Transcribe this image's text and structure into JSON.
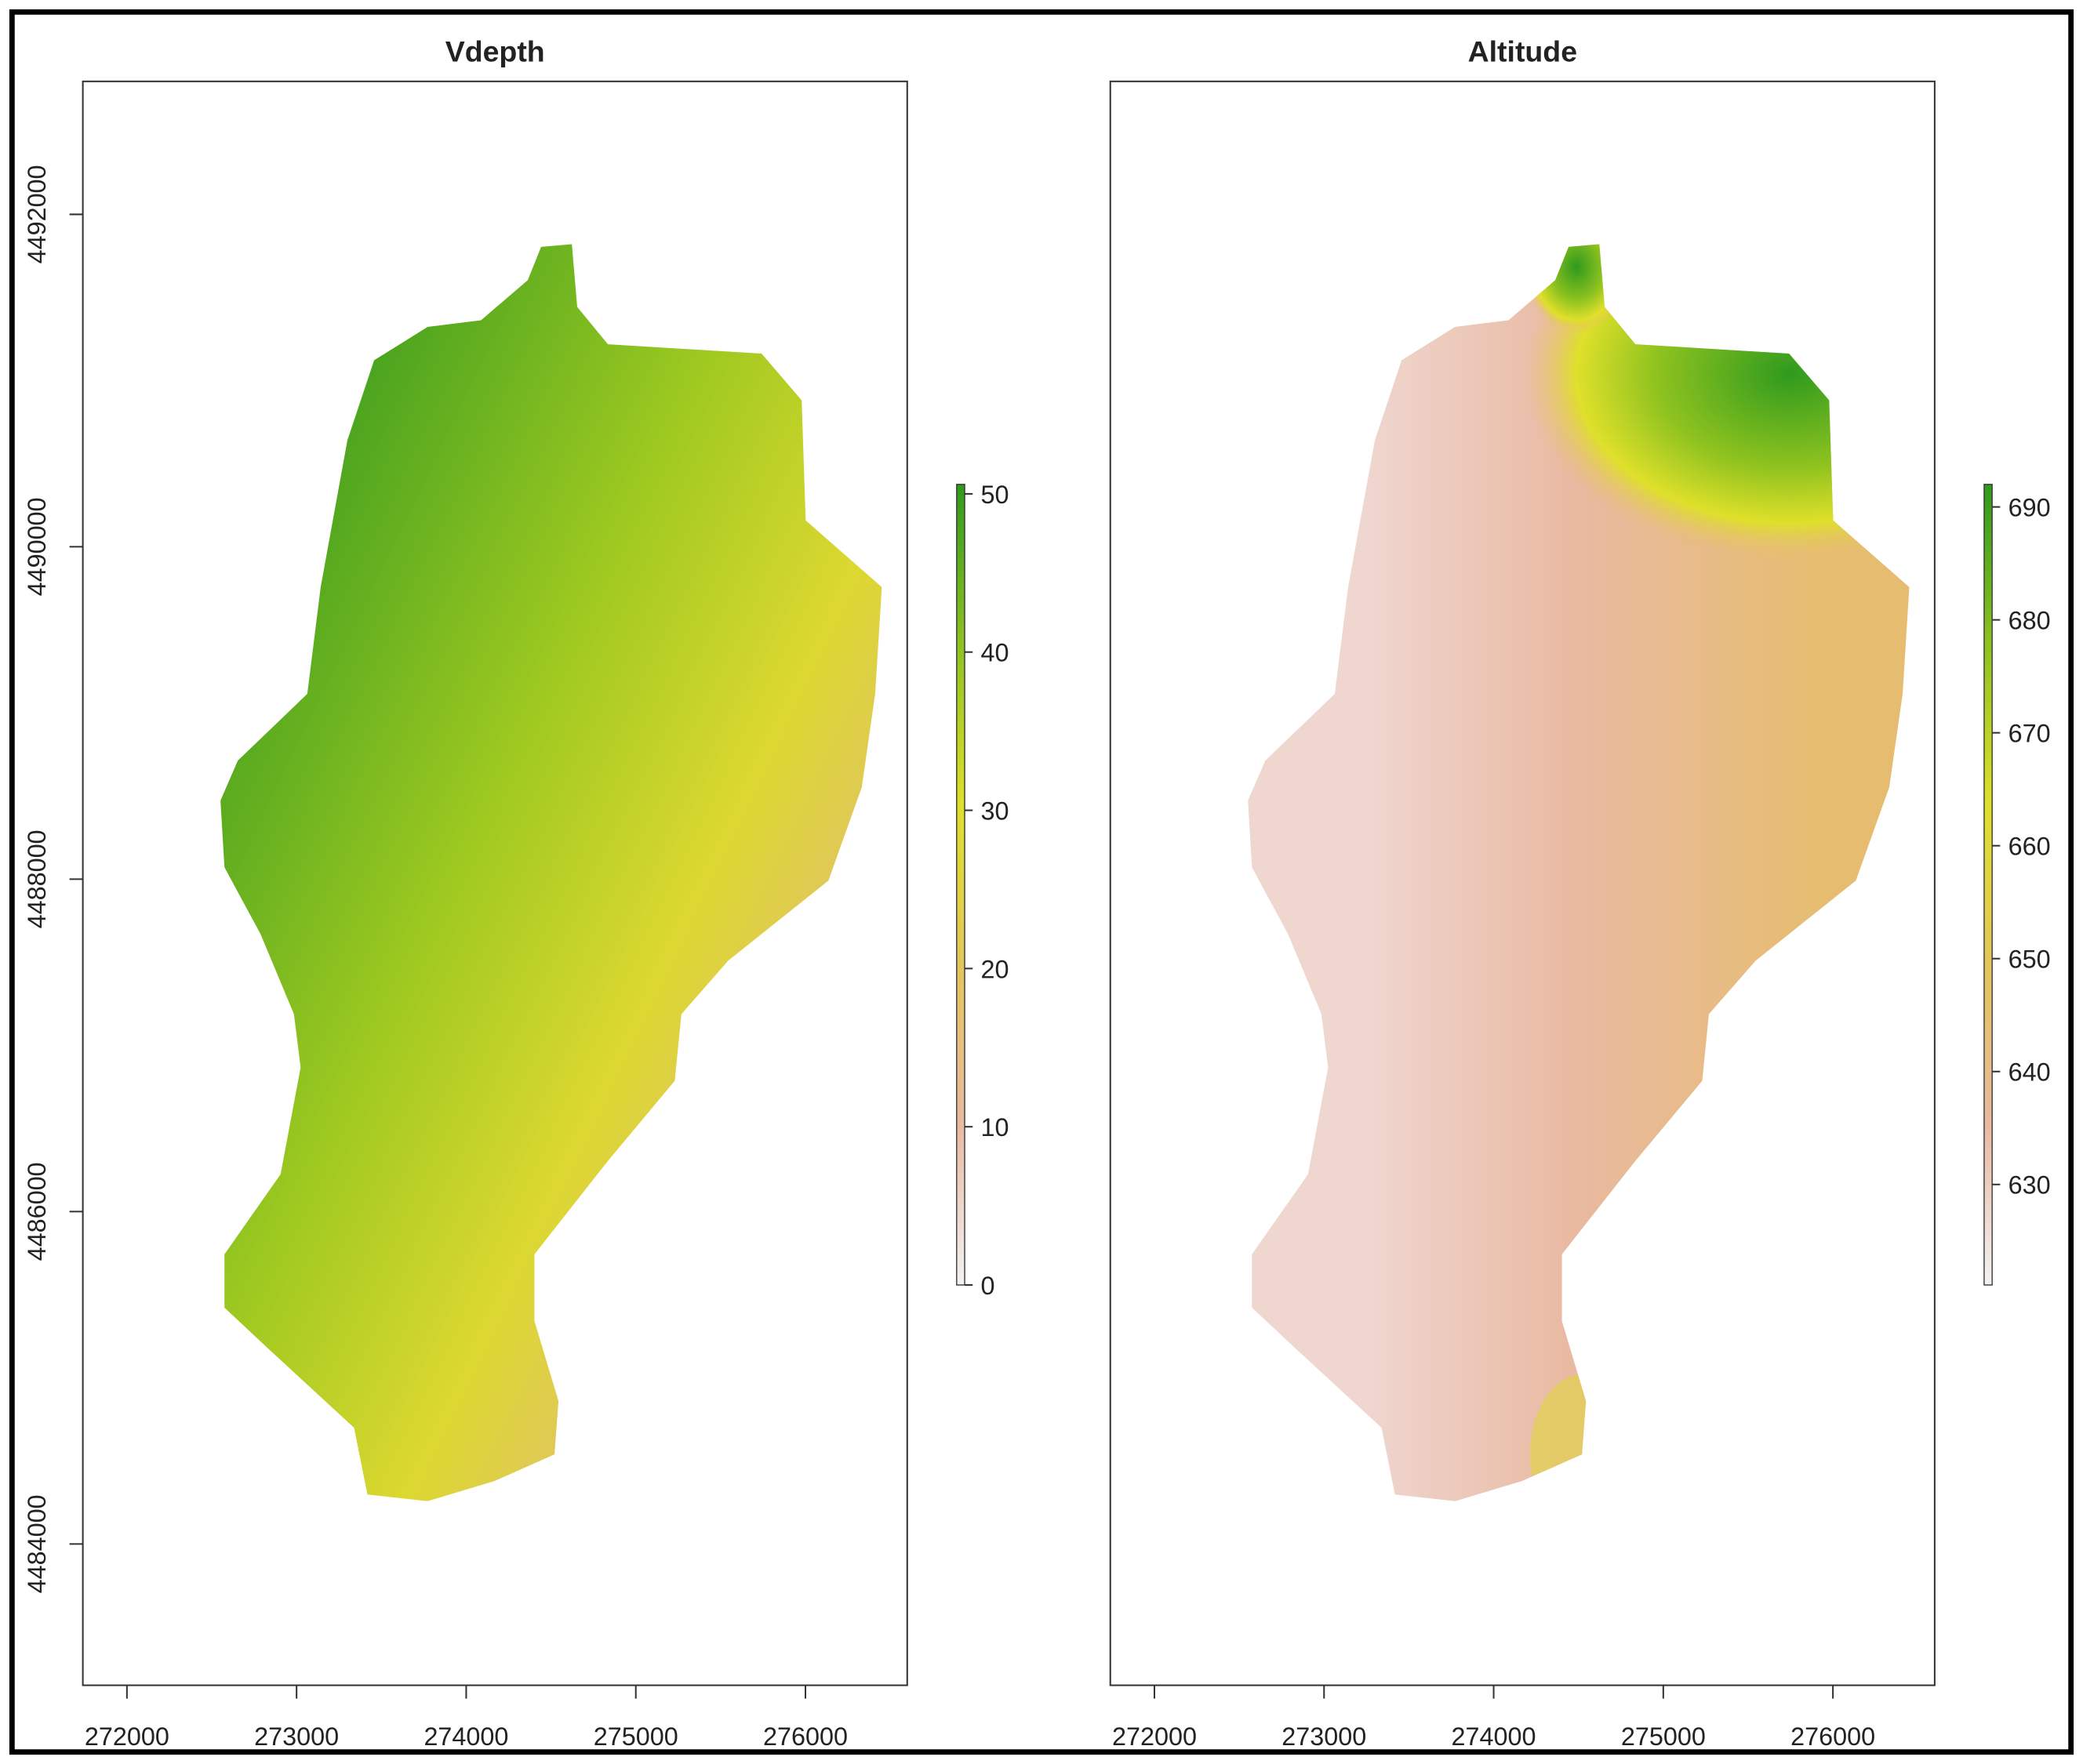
{
  "chart_data": [
    {
      "type": "raster",
      "title": "Vdepth",
      "xlim": [
        271740,
        276600
      ],
      "xticks": [
        272000,
        273000,
        274000,
        275000,
        276000
      ],
      "ylim": [
        4483150,
        4492800
      ],
      "yticks": [
        4484000,
        4486000,
        4488000,
        4490000,
        4492000
      ],
      "colorbar_lim": [
        0,
        50.6
      ],
      "colorbar_ticks": [
        0,
        10,
        20,
        30,
        40,
        50
      ],
      "colorbar_colors": [
        "#f2f2f2",
        "#e9b9a1",
        "#e3c65a",
        "#dfe02a",
        "#8ec21f",
        "#2f9a1e"
      ]
    },
    {
      "type": "raster",
      "title": "Altitude",
      "xlim": [
        271740,
        276600
      ],
      "xticks": [
        272000,
        273000,
        274000,
        275000,
        276000
      ],
      "ylim": [
        4483150,
        4492800
      ],
      "colorbar_lim": [
        621.1,
        692
      ],
      "colorbar_ticks": [
        630,
        640,
        650,
        660,
        670,
        680,
        690
      ],
      "colorbar_colors": [
        "#f2f2f2",
        "#e9b9a1",
        "#e3c65a",
        "#dfe02a",
        "#8ec21f",
        "#2f9a1e"
      ]
    }
  ]
}
